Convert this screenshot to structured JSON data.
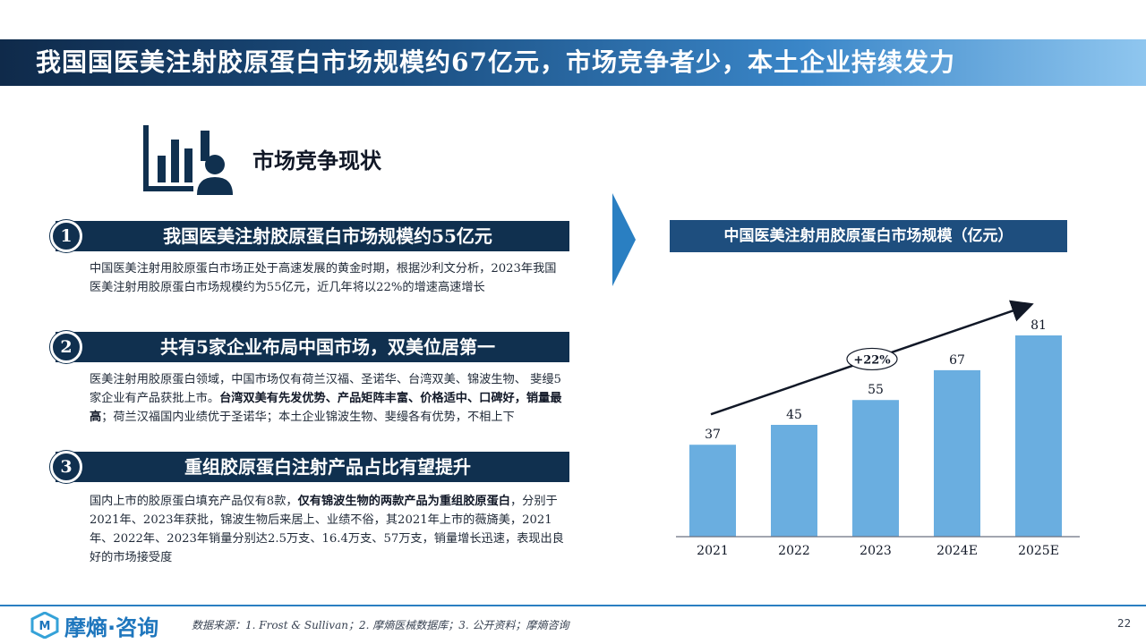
{
  "title": {
    "lead": "我国",
    "rest": "国医美注射胶原蛋白市场规模约67亿元，市场竞争者少，本土企业持续发力"
  },
  "section": {
    "icon": "chart-person-icon",
    "heading": "市场竞争现状"
  },
  "points": [
    {
      "num": "1",
      "title": "我国医美注射胶原蛋白市场规模约55亿元",
      "body_plain": "中国医美注射用胶原蛋白市场正处于高速发展的黄金时期，根据沙利文分析，2023年我国医美注射用胶原蛋白市场规模约为55亿元，近几年将以22%的增速高速增长"
    },
    {
      "num": "2",
      "title": "共有5家企业布局中国市场，双美位居第一",
      "body_pre": "医美注射用胶原蛋白领域，中国市场仅有荷兰汉福、圣诺华、台湾双美、锦波生物、 斐缦5家企业有产品获批上市。",
      "body_bold": "台湾双美有先发优势、产品矩阵丰富、价格适中、口碑好，销量最高",
      "body_post": "；荷兰汉福国内业绩优于圣诺华；本土企业锦波生物、斐缦各有优势，不相上下"
    },
    {
      "num": "3",
      "title": "重组胶原蛋白注射产品占比有望提升",
      "body_pre": "国内上市的胶原蛋白填充产品仅有8款，",
      "body_bold": "仅有锦波生物的两款产品为重组胶原蛋白",
      "body_post": "，分别于2021年、2023年获批，锦波生物后来居上、业绩不俗，其2021年上市的薇旖美，2021年、2022年、2023年销量分别达2.5万支、16.4万支、57万支，销量增长迅速，表现出良好的市场接受度"
    }
  ],
  "chart_title": "中国医美注射用胶原蛋白市场规模（亿元）",
  "chart_data": {
    "type": "bar",
    "categories": [
      "2021",
      "2022",
      "2023",
      "2024E",
      "2025E"
    ],
    "values": [
      37,
      45,
      55,
      67,
      81
    ],
    "title": "中国医美注射用胶原蛋白市场规模（亿元）",
    "xlabel": "",
    "ylabel": "",
    "ylim": [
      0,
      90
    ],
    "grid": false,
    "bar_color": "#6aaee0",
    "annotation": "+22%"
  },
  "footer": {
    "logo_icon": "brand-logo-icon",
    "logo_text": "摩熵·咨询",
    "source": "数据来源：1.  Frost & Sullivan；2. 摩熵医械数据库；3. 公开资料；摩熵咨询",
    "page": "22"
  },
  "colors": {
    "navy": "#10304f",
    "accent": "#1e4e7e",
    "bar": "#6aaee0",
    "brand": "#1e76bd"
  }
}
